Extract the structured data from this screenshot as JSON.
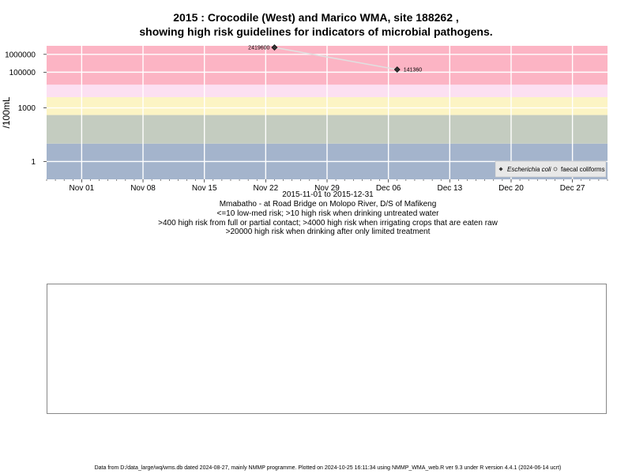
{
  "title": {
    "line1": "2015 : Crocodile (West) and Marico WMA, site 188262 ,",
    "line2": "showing high risk guidelines for indicators of microbial pathogens."
  },
  "subtitle": {
    "date_range": "2015-11-01 to 2015-12-31",
    "site": "Mmabatho - at Road Bridge on Molopo River, D/S of Mafikeng",
    "guideline1": "<=10 low-med risk; >10 high risk when drinking untreated water",
    "guideline2": ">400 high risk from full or partial contact; >4000 high risk when irrigating crops that are eaten raw",
    "guideline3": ">20000 high risk when drinking after only limited treatment"
  },
  "footer": "Data from D:/data_large/wq/wms.db dated 2024-08-27, mainly NMMP programme. Plotted on 2024-10-25 16:11:34 using NMMP_WMA_web.R ver 9.3 under R version 4.4.1 (2024-06-14 ucrt)",
  "chart_data": {
    "type": "line",
    "ylabel": "/100mL",
    "y_scale": "log",
    "xlim": [
      "2015-10-28",
      "2015-12-31"
    ],
    "ylim": [
      0.1,
      3000000
    ],
    "x_ticks": [
      {
        "date": "2015-11-01",
        "label": "Nov 01"
      },
      {
        "date": "2015-11-08",
        "label": "Nov 08"
      },
      {
        "date": "2015-11-15",
        "label": "Nov 15"
      },
      {
        "date": "2015-11-22",
        "label": "Nov 22"
      },
      {
        "date": "2015-11-29",
        "label": "Nov 29"
      },
      {
        "date": "2015-12-06",
        "label": "Dec 06"
      },
      {
        "date": "2015-12-13",
        "label": "Dec 13"
      },
      {
        "date": "2015-12-20",
        "label": "Dec 20"
      },
      {
        "date": "2015-12-27",
        "label": "Dec 27"
      }
    ],
    "y_ticks": [
      {
        "value": 1,
        "label": "1"
      },
      {
        "value": 1000,
        "label": "1000"
      },
      {
        "value": 100000,
        "label": "100000"
      },
      {
        "value": 1000000,
        "label": "1000000"
      }
    ],
    "grid": true,
    "risk_bands": [
      {
        "from": 0.1,
        "to": 10,
        "color": "#a4b4cc"
      },
      {
        "from": 10,
        "to": 400,
        "color": "#c4ccc0"
      },
      {
        "from": 400,
        "to": 4000,
        "color": "#fcf4c4"
      },
      {
        "from": 4000,
        "to": 20000,
        "color": "#fce0f2"
      },
      {
        "from": 20000,
        "to": 3000000,
        "color": "#fcb4c4"
      }
    ],
    "series": [
      {
        "name": "Escherichia coli",
        "marker": "diamond",
        "color": "#000000",
        "line_color": "#e0e0e0",
        "points": [
          {
            "x": "2015-11-23",
            "y": 2419600,
            "label": "2419600"
          },
          {
            "x": "2015-12-07",
            "y": 141360,
            "label": "141360"
          }
        ]
      },
      {
        "name": "faecal coliforms",
        "marker": "open-circle",
        "color": "#555555",
        "points": []
      }
    ],
    "legend": {
      "position": "bottom-right"
    }
  }
}
